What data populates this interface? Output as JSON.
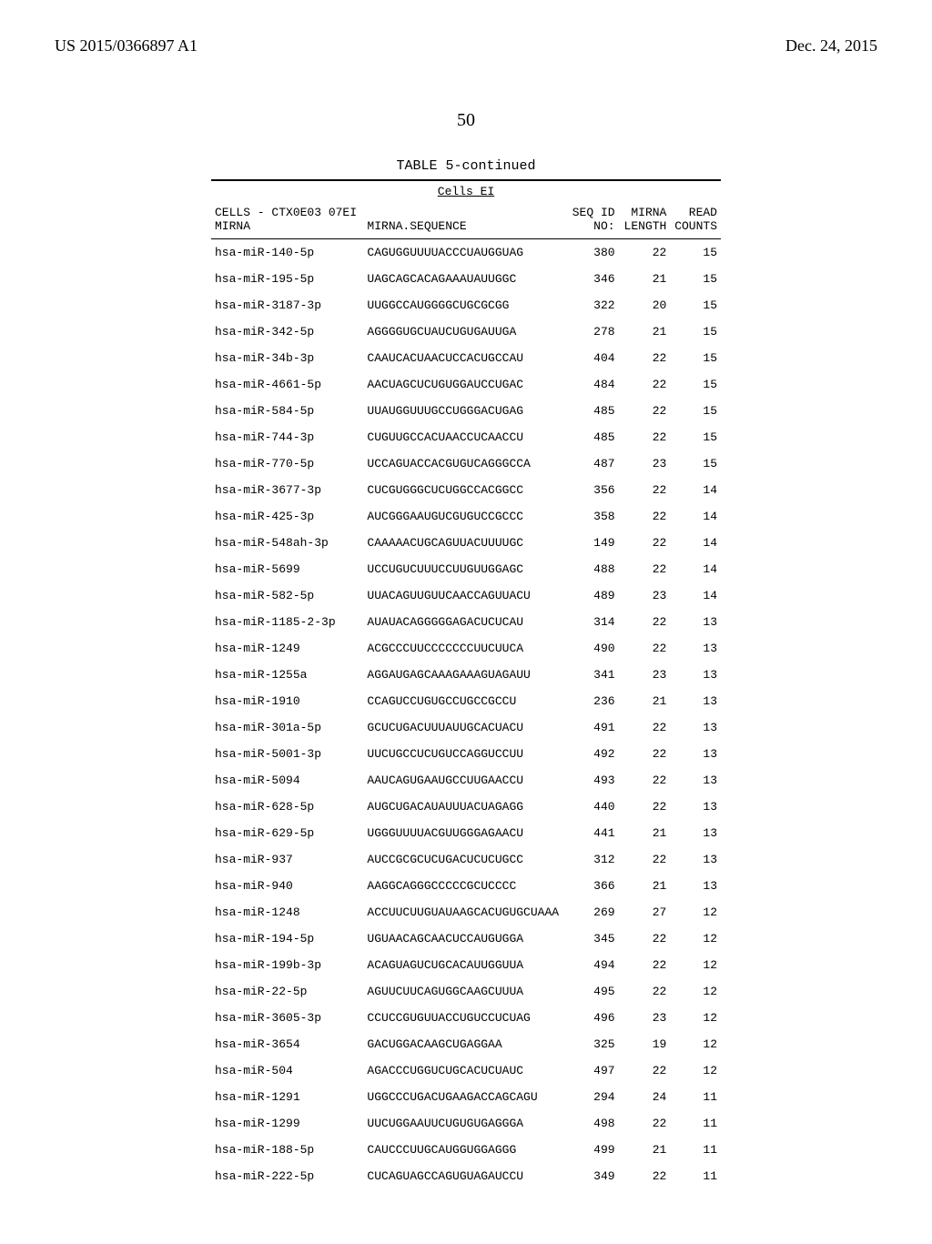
{
  "header": {
    "left": "US 2015/0366897 A1",
    "right": "Dec. 24, 2015"
  },
  "page_number": "50",
  "table": {
    "caption": "TABLE 5-continued",
    "subheader": "Cells EI",
    "columns": {
      "c1a": "CELLS - CTX0E03 07EI",
      "c1b": "MIRNA",
      "c2": "MIRNA.SEQUENCE",
      "c3a": "SEQ ID",
      "c3b": "NO:",
      "c4a": "MIRNA",
      "c4b": "LENGTH",
      "c5a": "READ",
      "c5b": "COUNTS"
    },
    "rows": [
      {
        "name": "hsa-miR-140-5p",
        "seq": "CAGUGGUUUUACCCUAUGGUAG",
        "no": "380",
        "len": "22",
        "cnt": "15"
      },
      {
        "name": "hsa-miR-195-5p",
        "seq": "UAGCAGCACAGAAAUAUUGGC",
        "no": "346",
        "len": "21",
        "cnt": "15"
      },
      {
        "name": "hsa-miR-3187-3p",
        "seq": "UUGGCCAUGGGGCUGCGCGG",
        "no": "322",
        "len": "20",
        "cnt": "15"
      },
      {
        "name": "hsa-miR-342-5p",
        "seq": "AGGGGUGCUAUCUGUGAUUGA",
        "no": "278",
        "len": "21",
        "cnt": "15"
      },
      {
        "name": "hsa-miR-34b-3p",
        "seq": "CAAUCACUAACUCCACUGCCAU",
        "no": "404",
        "len": "22",
        "cnt": "15"
      },
      {
        "name": "hsa-miR-4661-5p",
        "seq": "AACUAGCUCUGUGGAUCCUGAC",
        "no": "484",
        "len": "22",
        "cnt": "15"
      },
      {
        "name": "hsa-miR-584-5p",
        "seq": "UUAUGGUUUGCCUGGGACUGAG",
        "no": "485",
        "len": "22",
        "cnt": "15"
      },
      {
        "name": "hsa-miR-744-3p",
        "seq": "CUGUUGCCACUAACCUCAACCU",
        "no": "485",
        "len": "22",
        "cnt": "15"
      },
      {
        "name": "hsa-miR-770-5p",
        "seq": "UCCAGUACCACGUGUCAGGGCCA",
        "no": "487",
        "len": "23",
        "cnt": "15"
      },
      {
        "name": "hsa-miR-3677-3p",
        "seq": "CUCGUGGGCUCUGGCCACGGCC",
        "no": "356",
        "len": "22",
        "cnt": "14"
      },
      {
        "name": "hsa-miR-425-3p",
        "seq": "AUCGGGAAUGUCGUGUCCGCCC",
        "no": "358",
        "len": "22",
        "cnt": "14"
      },
      {
        "name": "hsa-miR-548ah-3p",
        "seq": "CAAAAACUGCAGUUACUUUUGC",
        "no": "149",
        "len": "22",
        "cnt": "14"
      },
      {
        "name": "hsa-miR-5699",
        "seq": "UCCUGUCUUUCCUUGUUGGAGC",
        "no": "488",
        "len": "22",
        "cnt": "14"
      },
      {
        "name": "hsa-miR-582-5p",
        "seq": "UUACAGUUGUUCAACCAGUUACU",
        "no": "489",
        "len": "23",
        "cnt": "14"
      },
      {
        "name": "hsa-miR-1185-2-3p",
        "seq": "AUAUACAGGGGGAGACUCUCAU",
        "no": "314",
        "len": "22",
        "cnt": "13"
      },
      {
        "name": "hsa-miR-1249",
        "seq": "ACGCCCUUCCCCCCCUUCUUCA",
        "no": "490",
        "len": "22",
        "cnt": "13"
      },
      {
        "name": "hsa-miR-1255a",
        "seq": "AGGAUGAGCAAAGAAAGUAGAUU",
        "no": "341",
        "len": "23",
        "cnt": "13"
      },
      {
        "name": "hsa-miR-1910",
        "seq": "CCAGUCCUGUGCCUGCCGCCU",
        "no": "236",
        "len": "21",
        "cnt": "13"
      },
      {
        "name": "hsa-miR-301a-5p",
        "seq": "GCUCUGACUUUAUUGCACUACU",
        "no": "491",
        "len": "22",
        "cnt": "13"
      },
      {
        "name": "hsa-miR-5001-3p",
        "seq": "UUCUGCCUCUGUCCAGGUCCUU",
        "no": "492",
        "len": "22",
        "cnt": "13"
      },
      {
        "name": "hsa-miR-5094",
        "seq": "AAUCAGUGAAUGCCUUGAACCU",
        "no": "493",
        "len": "22",
        "cnt": "13"
      },
      {
        "name": "hsa-miR-628-5p",
        "seq": "AUGCUGACAUAUUUACUAGAGG",
        "no": "440",
        "len": "22",
        "cnt": "13"
      },
      {
        "name": "hsa-miR-629-5p",
        "seq": "UGGGUUUUACGUUGGGAGAACU",
        "no": "441",
        "len": "21",
        "cnt": "13"
      },
      {
        "name": "hsa-miR-937",
        "seq": "AUCCGCGCUCUGACUCUCUGCC",
        "no": "312",
        "len": "22",
        "cnt": "13"
      },
      {
        "name": "hsa-miR-940",
        "seq": "AAGGCAGGGCCCCCGCUCCCC",
        "no": "366",
        "len": "21",
        "cnt": "13"
      },
      {
        "name": "hsa-miR-1248",
        "seq": "ACCUUCUUGUAUAAGCACUGUGCUAAA",
        "no": "269",
        "len": "27",
        "cnt": "12"
      },
      {
        "name": "hsa-miR-194-5p",
        "seq": "UGUAACAGCAACUCCAUGUGGA",
        "no": "345",
        "len": "22",
        "cnt": "12"
      },
      {
        "name": "hsa-miR-199b-3p",
        "seq": "ACAGUAGUCUGCACAUUGGUUA",
        "no": "494",
        "len": "22",
        "cnt": "12"
      },
      {
        "name": "hsa-miR-22-5p",
        "seq": "AGUUCUUCAGUGGCAAGCUUUA",
        "no": "495",
        "len": "22",
        "cnt": "12"
      },
      {
        "name": "hsa-miR-3605-3p",
        "seq": "CCUCCGUGUUACCUGUCCUCUAG",
        "no": "496",
        "len": "23",
        "cnt": "12"
      },
      {
        "name": "hsa-miR-3654",
        "seq": "GACUGGACAAGCUGAGGAA",
        "no": "325",
        "len": "19",
        "cnt": "12"
      },
      {
        "name": "hsa-miR-504",
        "seq": "AGACCCUGGUCUGCACUCUAUC",
        "no": "497",
        "len": "22",
        "cnt": "12"
      },
      {
        "name": "hsa-miR-1291",
        "seq": "UGGCCCUGACUGAAGACCAGCAGU",
        "no": "294",
        "len": "24",
        "cnt": "11"
      },
      {
        "name": "hsa-miR-1299",
        "seq": "UUCUGGAAUUCUGUGUGAGGGA",
        "no": "498",
        "len": "22",
        "cnt": "11"
      },
      {
        "name": "hsa-miR-188-5p",
        "seq": "CAUCCCUUGCAUGGUGGAGGG",
        "no": "499",
        "len": "21",
        "cnt": "11"
      },
      {
        "name": "hsa-miR-222-5p",
        "seq": "CUCAGUAGCCAGUGUAGAUCCU",
        "no": "349",
        "len": "22",
        "cnt": "11"
      }
    ]
  }
}
